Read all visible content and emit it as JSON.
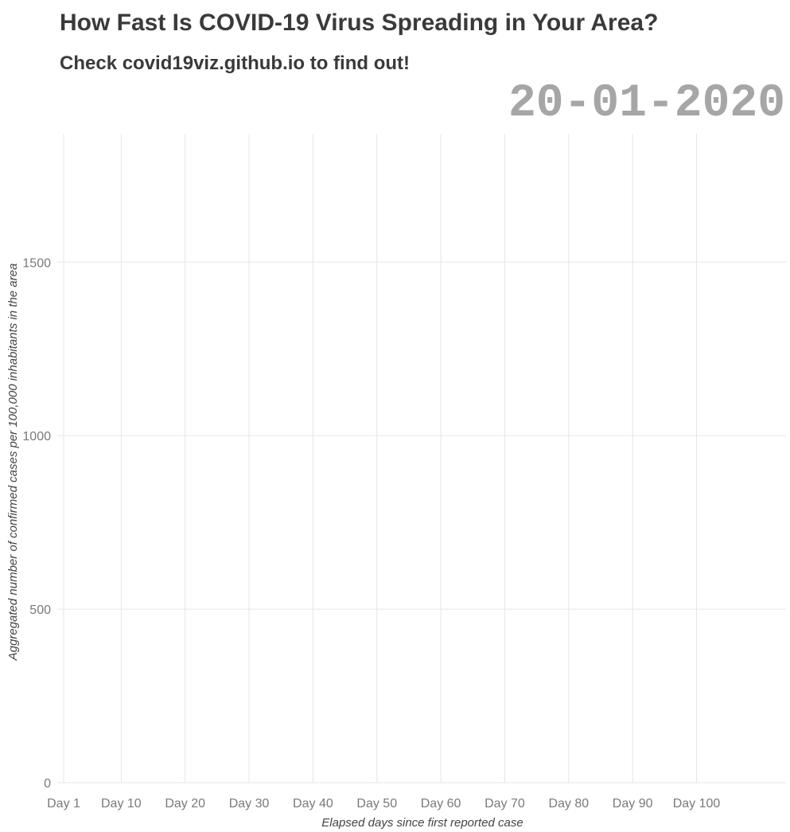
{
  "chart_data": {
    "type": "line",
    "title": "How Fast Is COVID-19 Virus Spreading in Your Area?",
    "subtitle": "Check covid19viz.github.io to find out!",
    "date": "20-01-2020",
    "xlabel": "Elapsed days since first reported case",
    "ylabel": "Aggregated number of confirmed cases per 100,000 inhabitants in the area",
    "x_ticks": [
      {
        "value": 1,
        "label": "Day 1"
      },
      {
        "value": 10,
        "label": "Day 10"
      },
      {
        "value": 20,
        "label": "Day 20"
      },
      {
        "value": 30,
        "label": "Day 30"
      },
      {
        "value": 40,
        "label": "Day 40"
      },
      {
        "value": 50,
        "label": "Day 50"
      },
      {
        "value": 60,
        "label": "Day 60"
      },
      {
        "value": 70,
        "label": "Day 70"
      },
      {
        "value": 80,
        "label": "Day 80"
      },
      {
        "value": 90,
        "label": "Day 90"
      },
      {
        "value": 100,
        "label": "Day 100"
      }
    ],
    "y_ticks": [
      0,
      500,
      1000,
      1500
    ],
    "xlim": [
      0,
      114
    ],
    "ylim": [
      0,
      1870
    ],
    "grid": true,
    "series": []
  }
}
